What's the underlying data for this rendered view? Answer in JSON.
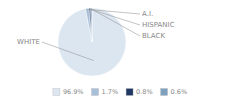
{
  "chart_data": {
    "type": "pie",
    "categories": [
      "WHITE",
      "A.I.",
      "HISPANIC",
      "BLACK"
    ],
    "values": [
      96.9,
      1.7,
      0.8,
      0.6
    ],
    "value_labels": [
      "96.9%",
      "1.7%",
      "0.8%",
      "0.6%"
    ],
    "colors": [
      "#dce6f1",
      "#a8bfd8",
      "#1f3864",
      "#7f9fbf"
    ],
    "legend": "bottom"
  }
}
